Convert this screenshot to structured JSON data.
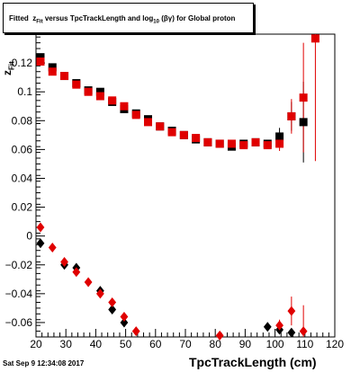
{
  "title": {
    "prefix": "Fitted",
    "z": "z",
    "z_sub": "Fit",
    "mid": "versus TpcTrackLength and log",
    "log_sub": "10",
    "suffix": "(βγ) for Global proton"
  },
  "footer": "Sat Sep  9 12:34:08 2017",
  "axes": {
    "xlabel": "TpcTrackLength (cm)",
    "ylabel_main": "z",
    "ylabel_sub": "Fit"
  },
  "chart_data": {
    "type": "scatter",
    "xlim": [
      20,
      120
    ],
    "ylim": [
      -0.07,
      0.14
    ],
    "xticks": [
      20,
      30,
      40,
      50,
      60,
      70,
      80,
      90,
      100,
      110,
      120
    ],
    "xtick_labels": [
      "20",
      "30",
      "40",
      "50",
      "60",
      "70",
      "80",
      "90",
      "100",
      "110",
      "120"
    ],
    "yticks": [
      -0.06,
      -0.04,
      -0.02,
      0,
      0.02,
      0.04,
      0.06,
      0.08,
      0.1,
      0.12
    ],
    "ytick_labels": [
      "−0.06",
      "−0.04",
      "−0.02",
      "0",
      "0.02",
      "0.04",
      "0.06",
      "0.08",
      "0.1",
      "0.12"
    ],
    "grid": false,
    "colors": {
      "black": "#000000",
      "red": "#e00000"
    },
    "series": [
      {
        "marker": "square",
        "color": "#000000",
        "points": [
          {
            "x": 21.5,
            "y": 0.124
          },
          {
            "x": 25.5,
            "y": 0.117
          },
          {
            "x": 29.5,
            "y": 0.111
          },
          {
            "x": 33.5,
            "y": 0.106
          },
          {
            "x": 37.5,
            "y": 0.101
          },
          {
            "x": 41.5,
            "y": 0.1
          },
          {
            "x": 45.5,
            "y": 0.093
          },
          {
            "x": 49.5,
            "y": 0.088
          },
          {
            "x": 53.5,
            "y": 0.085
          },
          {
            "x": 57.5,
            "y": 0.081
          },
          {
            "x": 61.5,
            "y": 0.076
          },
          {
            "x": 65.5,
            "y": 0.073
          },
          {
            "x": 69.5,
            "y": 0.07
          },
          {
            "x": 73.5,
            "y": 0.067
          },
          {
            "x": 77.5,
            "y": 0.065
          },
          {
            "x": 81.5,
            "y": 0.064
          },
          {
            "x": 85.5,
            "y": 0.062
          },
          {
            "x": 89.5,
            "y": 0.064
          },
          {
            "x": 93.5,
            "y": 0.065
          },
          {
            "x": 97.5,
            "y": 0.064
          },
          {
            "x": 101.5,
            "y": 0.069,
            "err": 0.006
          },
          {
            "x": 105.5,
            "y": 0.083,
            "err": 0.01
          },
          {
            "x": 109.5,
            "y": 0.079,
            "err": 0.028
          }
        ]
      },
      {
        "marker": "square",
        "color": "#e00000",
        "points": [
          {
            "x": 21.5,
            "y": 0.121
          },
          {
            "x": 25.5,
            "y": 0.114
          },
          {
            "x": 29.5,
            "y": 0.111
          },
          {
            "x": 33.5,
            "y": 0.105
          },
          {
            "x": 37.5,
            "y": 0.1
          },
          {
            "x": 41.5,
            "y": 0.097
          },
          {
            "x": 45.5,
            "y": 0.094
          },
          {
            "x": 49.5,
            "y": 0.09
          },
          {
            "x": 53.5,
            "y": 0.084
          },
          {
            "x": 57.5,
            "y": 0.079
          },
          {
            "x": 61.5,
            "y": 0.076
          },
          {
            "x": 65.5,
            "y": 0.072
          },
          {
            "x": 69.5,
            "y": 0.07
          },
          {
            "x": 73.5,
            "y": 0.068
          },
          {
            "x": 77.5,
            "y": 0.065
          },
          {
            "x": 81.5,
            "y": 0.064
          },
          {
            "x": 85.5,
            "y": 0.064
          },
          {
            "x": 89.5,
            "y": 0.063
          },
          {
            "x": 93.5,
            "y": 0.065
          },
          {
            "x": 97.5,
            "y": 0.063
          },
          {
            "x": 101.5,
            "y": 0.064,
            "err": 0.005
          },
          {
            "x": 105.5,
            "y": 0.083,
            "err": 0.012
          },
          {
            "x": 109.5,
            "y": 0.096,
            "err": 0.038
          },
          {
            "x": 113.5,
            "y": 0.137,
            "err": 0.085
          }
        ]
      },
      {
        "marker": "diamond",
        "color": "#000000",
        "points": [
          {
            "x": 21.5,
            "y": -0.005
          },
          {
            "x": 29.5,
            "y": -0.02
          },
          {
            "x": 33.5,
            "y": -0.022
          },
          {
            "x": 41.5,
            "y": -0.038
          },
          {
            "x": 45.5,
            "y": -0.051
          },
          {
            "x": 49.5,
            "y": -0.06
          },
          {
            "x": 97.5,
            "y": -0.063
          },
          {
            "x": 101.5,
            "y": -0.065
          },
          {
            "x": 105.5,
            "y": -0.067
          }
        ]
      },
      {
        "marker": "diamond",
        "color": "#e00000",
        "points": [
          {
            "x": 21.5,
            "y": 0.006
          },
          {
            "x": 25.5,
            "y": -0.008
          },
          {
            "x": 29.5,
            "y": -0.018
          },
          {
            "x": 33.5,
            "y": -0.025
          },
          {
            "x": 37.5,
            "y": -0.032
          },
          {
            "x": 41.5,
            "y": -0.04
          },
          {
            "x": 45.5,
            "y": -0.046
          },
          {
            "x": 49.5,
            "y": -0.056
          },
          {
            "x": 53.5,
            "y": -0.066
          },
          {
            "x": 81.5,
            "y": -0.069
          },
          {
            "x": 101.5,
            "y": -0.062,
            "err": 0.004
          },
          {
            "x": 105.5,
            "y": -0.052,
            "err": 0.01
          },
          {
            "x": 109.5,
            "y": -0.066,
            "err": 0.018
          }
        ]
      }
    ]
  }
}
